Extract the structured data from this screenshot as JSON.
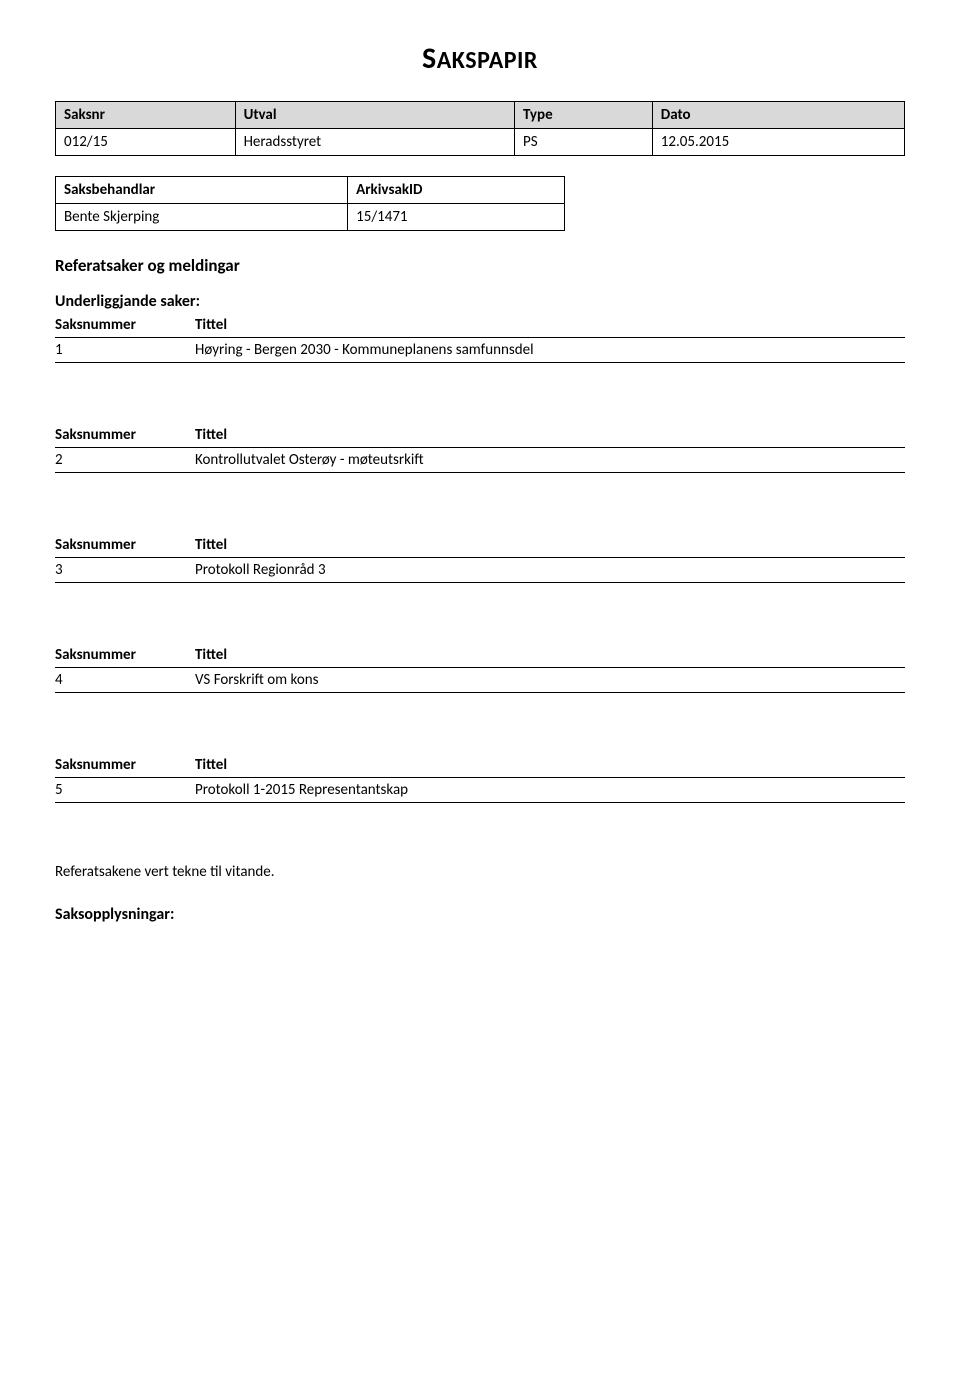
{
  "title": {
    "first": "S",
    "rest": "AKSPAPIR"
  },
  "caseTable": {
    "headers": [
      "Saksnr",
      "Utval",
      "Type",
      "Dato"
    ],
    "row": [
      "012/15",
      "Heradsstyret",
      "PS",
      "12.05.2015"
    ]
  },
  "handlerTable": {
    "headers": [
      "Saksbehandlar",
      "ArkivsakID"
    ],
    "row": [
      "Bente Skjerping",
      "15/1471"
    ]
  },
  "sectionHeading": "Referatsaker og meldingar",
  "underliggende": "Underliggjande saker:",
  "columnHeaders": {
    "num": "Saksnummer",
    "title": "Tittel"
  },
  "items": [
    {
      "num": "1",
      "title": "Høyring - Bergen 2030 - Kommuneplanens samfunnsdel"
    },
    {
      "num": "2",
      "title": "Kontrollutvalet Osterøy - møteutsrkift"
    },
    {
      "num": "3",
      "title": "Protokoll Regionråd 3"
    },
    {
      "num": "4",
      "title": "VS Forskrift om kons"
    },
    {
      "num": "5",
      "title": "Protokoll 1-2015 Representantskap"
    }
  ],
  "footnote": "Referatsakene vert tekne til vitande.",
  "footerHeading": "Saksopplysningar:"
}
